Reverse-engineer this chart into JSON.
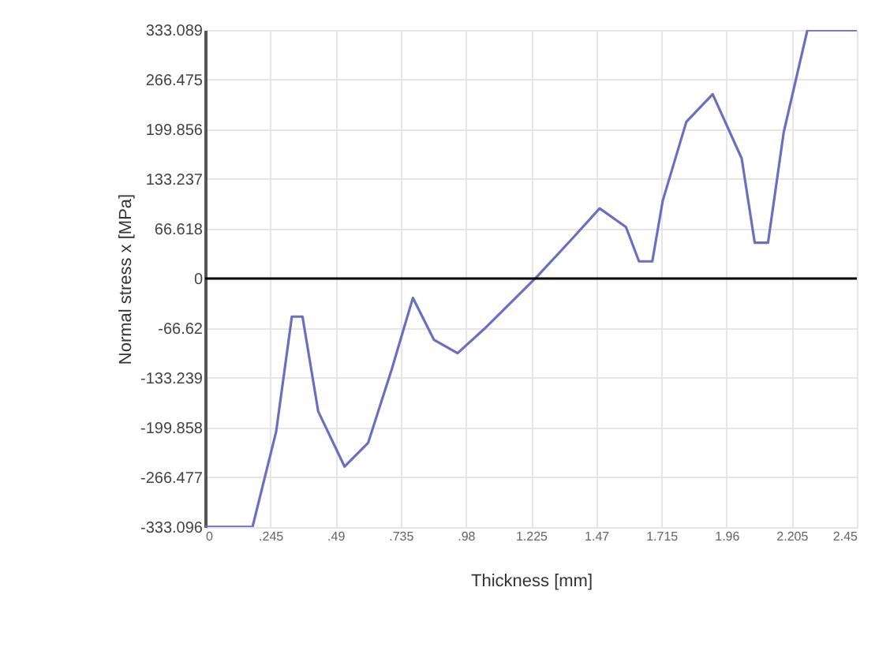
{
  "chart_data": {
    "type": "line",
    "xlabel": "Thickness [mm]",
    "ylabel": "Normal stress x [MPa]",
    "x": [
      0,
      0.178,
      0.267,
      0.326,
      0.366,
      0.425,
      0.524,
      0.613,
      0.702,
      0.781,
      0.86,
      0.949,
      1.048,
      1.246,
      1.384,
      1.483,
      1.582,
      1.631,
      1.681,
      1.72,
      1.809,
      1.908,
      2.017,
      2.066,
      2.116,
      2.175,
      2.264,
      2.45
    ],
    "series": [
      {
        "color": "#6b6fc0",
        "values": [
          -333,
          -333,
          -205,
          -51,
          -51,
          -178,
          -252,
          -220,
          -121,
          -26,
          -82,
          -100,
          -68,
          2,
          55,
          94,
          69,
          23,
          23,
          104,
          210,
          247,
          161,
          48,
          48,
          196,
          333,
          333
        ]
      }
    ],
    "xlim": [
      0,
      2.45
    ],
    "xticks": [
      0,
      {
        "value": 0.245,
        "label": ".245"
      },
      {
        "value": 0.49,
        "label": ".49"
      },
      {
        "value": 0.735,
        "label": ".735"
      },
      {
        "value": 0.98,
        "label": ".98"
      },
      1.225,
      1.47,
      1.715,
      1.96,
      2.205,
      2.45
    ],
    "ylim": [
      -333.096,
      333.089
    ],
    "yticks": [
      -333.096,
      -266.477,
      -199.858,
      -133.239,
      -66.62,
      0,
      66.618,
      133.237,
      199.856,
      266.475,
      333.089
    ],
    "ref_lines": [
      {
        "axis": "y",
        "value": 0,
        "color": "#000000"
      }
    ],
    "grid": true,
    "marker": "none",
    "line_style": "solid"
  }
}
